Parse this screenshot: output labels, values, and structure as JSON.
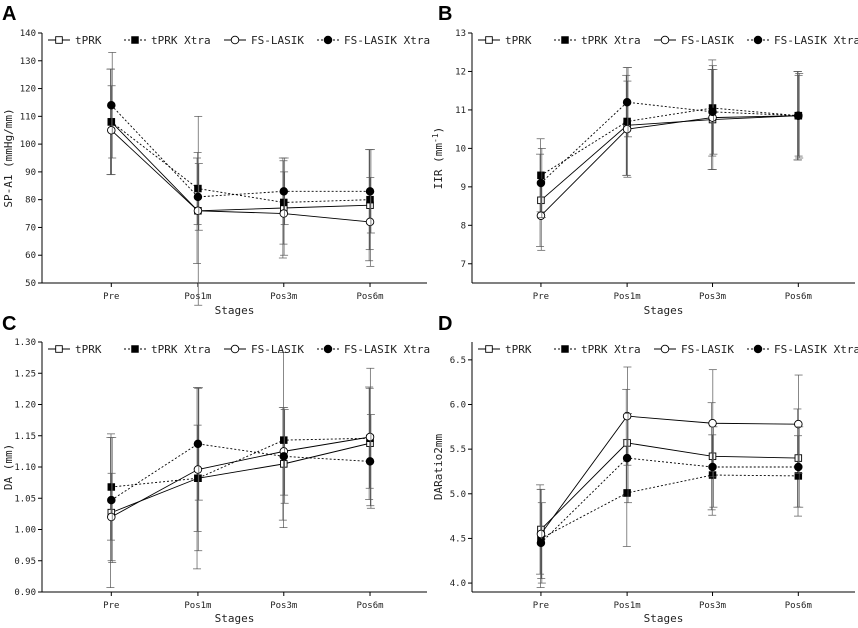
{
  "chart_data": [
    {
      "type": "line",
      "panel": "A",
      "categories": [
        "Pre",
        "Pos1m",
        "Pos3m",
        "Pos6m"
      ],
      "xlabel": "Stages",
      "ylabel": "SP-A1 (mmHg/mm)",
      "ylim": [
        50,
        140
      ],
      "yticks": [
        50,
        60,
        70,
        80,
        90,
        100,
        110,
        120,
        130,
        140
      ],
      "series": [
        {
          "name": "tPRK",
          "style": "solid",
          "marker": "square-open",
          "values": [
            108,
            76,
            77,
            78
          ],
          "err": [
            19,
            19,
            18,
            20
          ]
        },
        {
          "name": "tPRK Xtra",
          "style": "dotted",
          "marker": "square-filled",
          "values": [
            108,
            84,
            79,
            80
          ],
          "err": [
            19,
            13,
            15,
            18
          ]
        },
        {
          "name": "FS-LASIK",
          "style": "solid",
          "marker": "circle-open",
          "values": [
            105,
            76,
            75,
            72
          ],
          "err": [
            16,
            34,
            15,
            16
          ]
        },
        {
          "name": "FS-LASIK Xtra",
          "style": "dotted",
          "marker": "circle-filled",
          "values": [
            114,
            81,
            83,
            83
          ],
          "err": [
            19,
            12,
            12,
            15
          ]
        }
      ]
    },
    {
      "type": "line",
      "panel": "B",
      "categories": [
        "Pre",
        "Pos1m",
        "Pos3m",
        "Pos6m"
      ],
      "xlabel": "Stages",
      "ylabel": "IIR (mm",
      "ylabel_sup": "-1",
      "ylabel_end": ")",
      "ylim": [
        6.5,
        13
      ],
      "yticks": [
        7,
        8,
        9,
        10,
        11,
        12,
        13
      ],
      "series": [
        {
          "name": "tPRK",
          "style": "solid",
          "marker": "square-open",
          "values": [
            8.65,
            10.6,
            10.75,
            10.85
          ],
          "err": [
            1.2,
            1.3,
            1.3,
            1.15
          ]
        },
        {
          "name": "tPRK Xtra",
          "style": "dotted",
          "marker": "square-filled",
          "values": [
            9.3,
            10.7,
            11.05,
            10.85
          ],
          "err": [
            0.95,
            1.4,
            1.25,
            1.15
          ]
        },
        {
          "name": "FS-LASIK",
          "style": "solid",
          "marker": "circle-open",
          "values": [
            8.25,
            10.5,
            10.8,
            10.85
          ],
          "err": [
            0.9,
            1.25,
            1.35,
            1.05
          ]
        },
        {
          "name": "FS-LASIK Xtra",
          "style": "dotted",
          "marker": "circle-filled",
          "values": [
            9.1,
            11.2,
            10.95,
            10.85
          ],
          "err": [
            0.9,
            0.9,
            1.1,
            1.1
          ]
        }
      ]
    },
    {
      "type": "line",
      "panel": "C",
      "categories": [
        "Pre",
        "Pos1m",
        "Pos3m",
        "Pos6m"
      ],
      "xlabel": "Stages",
      "ylabel": "DA (mm)",
      "ylim": [
        0.9,
        1.3
      ],
      "yticks": [
        0.9,
        0.95,
        1.0,
        1.05,
        1.1,
        1.15,
        1.2,
        1.25,
        1.3
      ],
      "series": [
        {
          "name": "tPRK",
          "style": "solid",
          "marker": "square-open",
          "values": [
            1.027,
            1.082,
            1.105,
            1.138
          ],
          "err": [
            0.12,
            0.145,
            0.09,
            0.09
          ]
        },
        {
          "name": "tPRK Xtra",
          "style": "dotted",
          "marker": "square-filled",
          "values": [
            1.068,
            1.082,
            1.143,
            1.146
          ],
          "err": [
            0.085,
            0.085,
            0.14,
            0.08
          ]
        },
        {
          "name": "FS-LASIK",
          "style": "solid",
          "marker": "circle-open",
          "values": [
            1.02,
            1.096,
            1.125,
            1.148
          ],
          "err": [
            0.07,
            0.13,
            0.07,
            0.11
          ]
        },
        {
          "name": "FS-LASIK Xtra",
          "style": "dotted",
          "marker": "circle-filled",
          "values": [
            1.047,
            1.137,
            1.117,
            1.109
          ],
          "err": [
            0.1,
            0.09,
            0.075,
            0.075
          ]
        }
      ]
    },
    {
      "type": "line",
      "panel": "D",
      "categories": [
        "Pre",
        "Pos1m",
        "Pos3m",
        "Pos6m"
      ],
      "xlabel": "Stages",
      "ylabel": "DARatio2mm",
      "ylim": [
        3.9,
        6.7
      ],
      "yticks": [
        4.0,
        4.5,
        5.0,
        5.5,
        6.0,
        6.5
      ],
      "series": [
        {
          "name": "tPRK",
          "style": "solid",
          "marker": "square-open",
          "values": [
            4.6,
            5.57,
            5.42,
            5.4
          ],
          "err": [
            0.5,
            0.6,
            0.6,
            0.55
          ]
        },
        {
          "name": "tPRK Xtra",
          "style": "dotted",
          "marker": "square-filled",
          "values": [
            4.5,
            5.01,
            5.21,
            5.2
          ],
          "err": [
            0.55,
            0.6,
            0.45,
            0.45
          ]
        },
        {
          "name": "FS-LASIK",
          "style": "solid",
          "marker": "circle-open",
          "values": [
            4.55,
            5.87,
            5.79,
            5.78
          ],
          "err": [
            0.5,
            0.55,
            0.6,
            0.55
          ]
        },
        {
          "name": "FS-LASIK Xtra",
          "style": "dotted",
          "marker": "circle-filled",
          "values": [
            4.45,
            5.4,
            5.3,
            5.3
          ],
          "err": [
            0.45,
            0.5,
            0.45,
            0.45
          ]
        }
      ]
    }
  ]
}
